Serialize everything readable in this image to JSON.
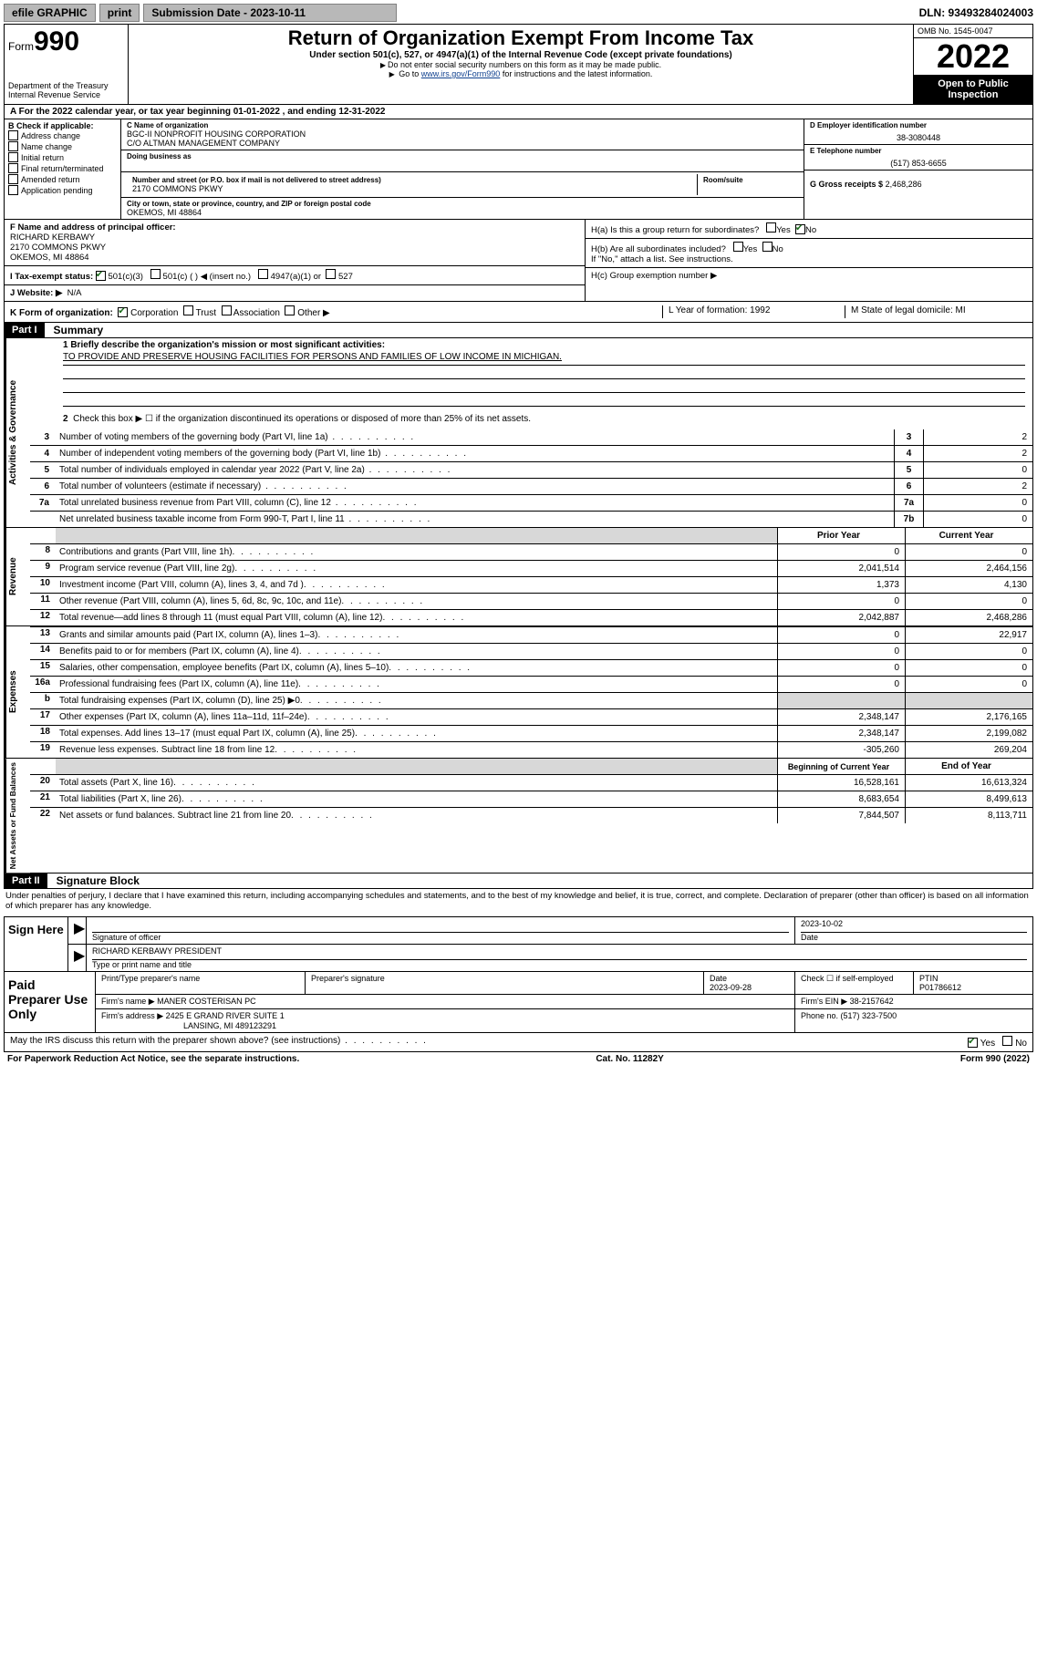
{
  "topbar": {
    "efile": "efile GRAPHIC",
    "print": "print",
    "submission_label": "Submission Date - 2023-10-11",
    "dln": "DLN: 93493284024003"
  },
  "header": {
    "form_word": "Form",
    "form_num": "990",
    "dept": "Department of the Treasury",
    "irs": "Internal Revenue Service",
    "title": "Return of Organization Exempt From Income Tax",
    "sub1": "Under section 501(c), 527, or 4947(a)(1) of the Internal Revenue Code (except private foundations)",
    "sub2": "Do not enter social security numbers on this form as it may be made public.",
    "sub3_pre": "Go to ",
    "sub3_link": "www.irs.gov/Form990",
    "sub3_post": " for instructions and the latest information.",
    "omb": "OMB No. 1545-0047",
    "year": "2022",
    "open": "Open to Public Inspection"
  },
  "row_a": "A   For the 2022 calendar year, or tax year beginning 01-01-2022    , and ending 12-31-2022",
  "col_b": {
    "label": "B Check if applicable:",
    "items": [
      "Address change",
      "Name change",
      "Initial return",
      "Final return/terminated",
      "Amended return",
      "Application pending"
    ]
  },
  "col_c": {
    "name_lbl": "C Name of organization",
    "name1": "BGC-II NONPROFIT HOUSING CORPORATION",
    "name2": "C/O ALTMAN MANAGEMENT COMPANY",
    "dba_lbl": "Doing business as",
    "street_lbl": "Number and street (or P.O. box if mail is not delivered to street address)",
    "street": "2170 COMMONS PKWY",
    "room_lbl": "Room/suite",
    "city_lbl": "City or town, state or province, country, and ZIP or foreign postal code",
    "city": "OKEMOS, MI  48864"
  },
  "col_d": {
    "ein_lbl": "D Employer identification number",
    "ein": "38-3080448",
    "tel_lbl": "E Telephone number",
    "tel": "(517) 853-6655",
    "gross_lbl": "G Gross receipts $",
    "gross": "2,468,286"
  },
  "row_f": {
    "lbl": "F  Name and address of principal officer:",
    "name": "RICHARD KERBAWY",
    "addr1": "2170 COMMONS PKWY",
    "addr2": "OKEMOS, MI  48864"
  },
  "row_h": {
    "ha": "H(a)  Is this a group return for subordinates?",
    "ha_yes": "Yes",
    "ha_no": "No",
    "hb": "H(b)  Are all subordinates included?",
    "hb_note": "If \"No,\" attach a list. See instructions.",
    "hc": "H(c)  Group exemption number ▶"
  },
  "row_i": {
    "lbl": "I    Tax-exempt status:",
    "opts": [
      "501(c)(3)",
      "501(c) (  ) ◀ (insert no.)",
      "4947(a)(1) or",
      "527"
    ]
  },
  "row_j": {
    "lbl": "J   Website: ▶",
    "val": "N/A"
  },
  "row_k": {
    "lbl": "K Form of organization:",
    "opts": [
      "Corporation",
      "Trust",
      "Association",
      "Other ▶"
    ],
    "l": "L Year of formation: 1992",
    "m": "M State of legal domicile: MI"
  },
  "part1": {
    "hdr": "Part I",
    "title": "Summary",
    "line1_lbl": "1   Briefly describe the organization's mission or most significant activities:",
    "line1_val": "TO PROVIDE AND PRESERVE HOUSING FACILITIES FOR PERSONS AND FAMILIES OF LOW INCOME IN MICHIGAN.",
    "line2": "Check this box ▶ ☐  if the organization discontinued its operations or disposed of more than 25% of its net assets."
  },
  "gov_lines": [
    {
      "n": "3",
      "d": "Number of voting members of the governing body (Part VI, line 1a)",
      "b": "3",
      "v": "2"
    },
    {
      "n": "4",
      "d": "Number of independent voting members of the governing body (Part VI, line 1b)",
      "b": "4",
      "v": "2"
    },
    {
      "n": "5",
      "d": "Total number of individuals employed in calendar year 2022 (Part V, line 2a)",
      "b": "5",
      "v": "0"
    },
    {
      "n": "6",
      "d": "Total number of volunteers (estimate if necessary)",
      "b": "6",
      "v": "2"
    },
    {
      "n": "7a",
      "d": "Total unrelated business revenue from Part VIII, column (C), line 12",
      "b": "7a",
      "v": "0"
    },
    {
      "n": "",
      "d": "Net unrelated business taxable income from Form 990-T, Part I, line 11",
      "b": "7b",
      "v": "0"
    }
  ],
  "two_col_hdr": {
    "c1": "Prior Year",
    "c2": "Current Year"
  },
  "revenue": [
    {
      "n": "8",
      "d": "Contributions and grants (Part VIII, line 1h)",
      "c1": "0",
      "c2": "0"
    },
    {
      "n": "9",
      "d": "Program service revenue (Part VIII, line 2g)",
      "c1": "2,041,514",
      "c2": "2,464,156"
    },
    {
      "n": "10",
      "d": "Investment income (Part VIII, column (A), lines 3, 4, and 7d )",
      "c1": "1,373",
      "c2": "4,130"
    },
    {
      "n": "11",
      "d": "Other revenue (Part VIII, column (A), lines 5, 6d, 8c, 9c, 10c, and 11e)",
      "c1": "0",
      "c2": "0"
    },
    {
      "n": "12",
      "d": "Total revenue—add lines 8 through 11 (must equal Part VIII, column (A), line 12)",
      "c1": "2,042,887",
      "c2": "2,468,286"
    }
  ],
  "expenses": [
    {
      "n": "13",
      "d": "Grants and similar amounts paid (Part IX, column (A), lines 1–3)",
      "c1": "0",
      "c2": "22,917"
    },
    {
      "n": "14",
      "d": "Benefits paid to or for members (Part IX, column (A), line 4)",
      "c1": "0",
      "c2": "0"
    },
    {
      "n": "15",
      "d": "Salaries, other compensation, employee benefits (Part IX, column (A), lines 5–10)",
      "c1": "0",
      "c2": "0"
    },
    {
      "n": "16a",
      "d": "Professional fundraising fees (Part IX, column (A), line 11e)",
      "c1": "0",
      "c2": "0"
    },
    {
      "n": "b",
      "d": "Total fundraising expenses (Part IX, column (D), line 25) ▶0",
      "c1": "",
      "c2": "",
      "shade": true
    },
    {
      "n": "17",
      "d": "Other expenses (Part IX, column (A), lines 11a–11d, 11f–24e)",
      "c1": "2,348,147",
      "c2": "2,176,165"
    },
    {
      "n": "18",
      "d": "Total expenses. Add lines 13–17 (must equal Part IX, column (A), line 25)",
      "c1": "2,348,147",
      "c2": "2,199,082"
    },
    {
      "n": "19",
      "d": "Revenue less expenses. Subtract line 18 from line 12",
      "c1": "-305,260",
      "c2": "269,204"
    }
  ],
  "net_hdr": {
    "c1": "Beginning of Current Year",
    "c2": "End of Year"
  },
  "net": [
    {
      "n": "20",
      "d": "Total assets (Part X, line 16)",
      "c1": "16,528,161",
      "c2": "16,613,324"
    },
    {
      "n": "21",
      "d": "Total liabilities (Part X, line 26)",
      "c1": "8,683,654",
      "c2": "8,499,613"
    },
    {
      "n": "22",
      "d": "Net assets or fund balances. Subtract line 21 from line 20",
      "c1": "7,844,507",
      "c2": "8,113,711"
    }
  ],
  "part2": {
    "hdr": "Part II",
    "title": "Signature Block",
    "decl": "Under penalties of perjury, I declare that I have examined this return, including accompanying schedules and statements, and to the best of my knowledge and belief, it is true, correct, and complete. Declaration of preparer (other than officer) is based on all information of which preparer has any knowledge."
  },
  "sign": {
    "label": "Sign Here",
    "sig_lbl": "Signature of officer",
    "date": "2023-10-02",
    "date_lbl": "Date",
    "name": "RICHARD KERBAWY PRESIDENT",
    "name_lbl": "Type or print name and title"
  },
  "paid": {
    "label": "Paid Preparer Use Only",
    "row1": {
      "a": "Print/Type preparer's name",
      "b": "Preparer's signature",
      "c_lbl": "Date",
      "c": "2023-09-28",
      "d": "Check ☐ if self-employed",
      "e_lbl": "PTIN",
      "e": "P01786612"
    },
    "row2": {
      "a": "Firm's name    ▶ MANER COSTERISAN PC",
      "b": "Firm's EIN ▶ 38-2157642"
    },
    "row3": {
      "a": "Firm's address ▶ 2425 E GRAND RIVER SUITE 1",
      "b": "Phone no. (517) 323-7500"
    },
    "row3b": "LANSING, MI  489123291"
  },
  "discuss": {
    "q": "May the IRS discuss this return with the preparer shown above? (see instructions)",
    "yes": "Yes",
    "no": "No"
  },
  "footer": {
    "left": "For Paperwork Reduction Act Notice, see the separate instructions.",
    "mid": "Cat. No. 11282Y",
    "right": "Form 990 (2022)"
  },
  "vlabels": {
    "gov": "Activities & Governance",
    "rev": "Revenue",
    "exp": "Expenses",
    "net": "Net Assets or Fund Balances"
  },
  "colors": {
    "link": "#10418f",
    "check": "#1a6b1a"
  }
}
